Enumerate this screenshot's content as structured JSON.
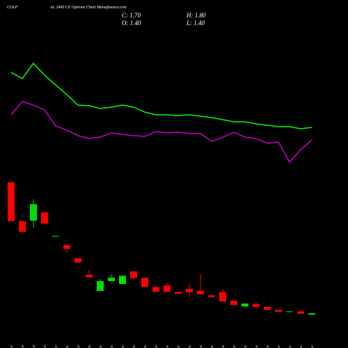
{
  "chart_data": {
    "type": "candlestick",
    "title": "COLP",
    "subtitle": "AL 2400 CE Options Chart Munafasutra.com",
    "ohlc_text": {
      "close": "C: 1.70",
      "high": "H: 1.80",
      "open": "O: 1.40",
      "low": "L: 1.40"
    },
    "categories": [
      "27 Oct",
      "28 Oct",
      "29 Oct",
      "30 Oct",
      "31 Oct",
      "03 Nov",
      "04 Nov",
      "06 Nov",
      "07 Nov",
      "10 Nov",
      "11 Nov",
      "12 Nov",
      "13 Nov",
      "14 Nov",
      "17 Nov",
      "18 Nov",
      "19 Nov",
      "20 Nov",
      "21 Nov",
      "24 Nov",
      "25 Nov",
      "26 Nov",
      "27 Nov",
      "28 Nov",
      "01 Dec",
      "02 Dec",
      "03 Dec",
      "04 Dec"
    ],
    "open": [
      28.6,
      20.6,
      20.7,
      22.4,
      17.6,
      15.7,
      13.0,
      9.6,
      6.3,
      8.3,
      7.7,
      10.3,
      9.0,
      7.1,
      7.4,
      6.1,
      6.7,
      6.3,
      5.4,
      6.0,
      4.3,
      3.1,
      3.6,
      3.0,
      2.4,
      2.0,
      2.1,
      1.4
    ],
    "high": [
      28.6,
      20.6,
      25.1,
      22.4,
      17.6,
      15.7,
      13.0,
      10.7,
      8.7,
      9.6,
      9.4,
      10.3,
      9.0,
      7.1,
      8.0,
      6.1,
      7.9,
      9.7,
      5.4,
      6.7,
      4.3,
      3.7,
      4.0,
      3.0,
      2.4,
      2.1,
      2.1,
      1.8
    ],
    "low": [
      20.6,
      18.4,
      19.3,
      20.1,
      17.6,
      14.0,
      12.1,
      9.1,
      6.3,
      8.3,
      7.7,
      8.9,
      7.1,
      6.1,
      6.1,
      5.7,
      5.0,
      5.6,
      5.0,
      4.1,
      3.4,
      3.1,
      3.0,
      2.4,
      2.0,
      2.0,
      1.6,
      1.4
    ],
    "close": [
      20.6,
      18.4,
      24.1,
      20.1,
      17.6,
      14.9,
      12.1,
      9.1,
      8.3,
      9.0,
      9.4,
      8.9,
      7.1,
      6.1,
      6.1,
      5.7,
      6.0,
      5.6,
      5.0,
      4.1,
      3.4,
      3.7,
      3.0,
      2.4,
      2.0,
      2.1,
      1.6,
      1.7
    ],
    "up_color": "#00e000",
    "down_color": "#ff0000",
    "ylim": [
      0,
      30
    ],
    "lines": {
      "ylim": [
        0,
        100
      ],
      "series": [
        {
          "color": "#00ff00",
          "values": [
            91.3,
            85.6,
            99.4,
            88.8,
            80,
            71.3,
            61.9,
            61.3,
            58.8,
            60,
            61.9,
            60,
            55.6,
            53.1,
            53.1,
            52.5,
            53.1,
            51.9,
            50.6,
            48.8,
            46.9,
            46.9,
            45,
            43.8,
            42.5,
            42.5,
            40.6,
            41.9
          ]
        },
        {
          "color": "#cc00cc",
          "values": [
            53.1,
            65,
            61.9,
            57.5,
            43.1,
            39.4,
            34.4,
            31.9,
            33.1,
            36.9,
            35.6,
            34.4,
            33.8,
            38.1,
            36.9,
            37.5,
            36.3,
            36.3,
            29.4,
            33.1,
            37.5,
            33.1,
            31.9,
            27.5,
            28.8,
            10.6,
            21.9,
            30.6
          ]
        }
      ]
    }
  }
}
